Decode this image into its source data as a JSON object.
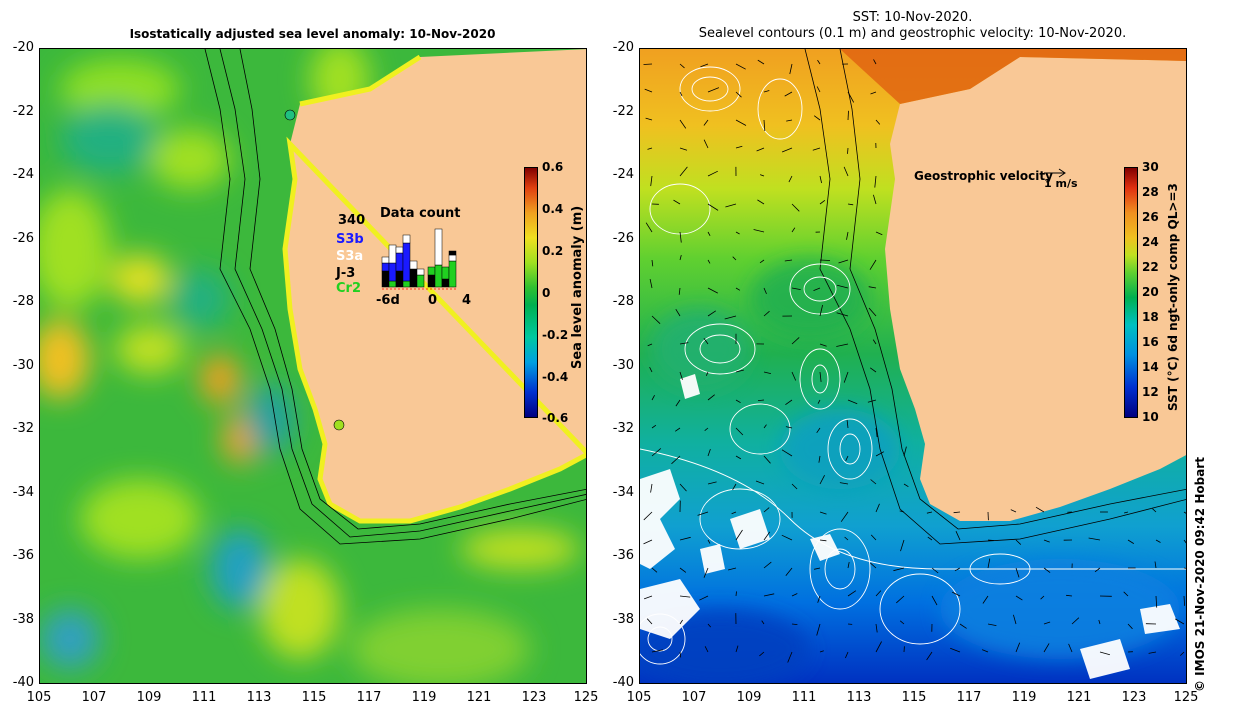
{
  "left_panel": {
    "title": "Isostatically adjusted sea level anomaly: 10-Nov-2020",
    "colorbar_label": "Sea level anomaly (m)",
    "colorbar_ticks": [
      "0.6",
      "0.4",
      "0.2",
      "0",
      "-0.2",
      "-0.4",
      "-0.6"
    ],
    "data_count": {
      "title": "Data count",
      "max_value": "340",
      "legend": [
        {
          "label": "S3b",
          "color": "#1a1aff"
        },
        {
          "label": "S3a",
          "color": "#ffffff"
        },
        {
          "label": "J-3",
          "color": "#000000"
        },
        {
          "label": "Cr2",
          "color": "#20d020"
        }
      ],
      "x_ticks": [
        "-6d",
        "0",
        "4"
      ]
    }
  },
  "right_panel": {
    "title_line1": "SST: 10-Nov-2020.",
    "title_line2": "Sealevel contours (0.1 m) and geostrophic velocity: 10-Nov-2020.",
    "colorbar_label": "SST (°C) 6d ngt-only comp QL>=3",
    "colorbar_ticks": [
      "30",
      "28",
      "26",
      "24",
      "22",
      "20",
      "18",
      "16",
      "14",
      "12",
      "10"
    ],
    "velocity_legend": "Geostrophic velocity",
    "velocity_unit": "1 m/s"
  },
  "axes": {
    "y_ticks": [
      "-20",
      "-22",
      "-24",
      "-26",
      "-28",
      "-30",
      "-32",
      "-34",
      "-36",
      "-38",
      "-40"
    ],
    "x_ticks": [
      "105",
      "107",
      "109",
      "111",
      "113",
      "115",
      "117",
      "119",
      "121",
      "123",
      "125"
    ]
  },
  "footer": "© IMOS 21-Nov-2020 09:42 Hobart",
  "colors": {
    "land": "#f9c896",
    "sla_base": "#40c040",
    "sst_warm": "#f0b020",
    "sst_cold": "#0050d0"
  }
}
